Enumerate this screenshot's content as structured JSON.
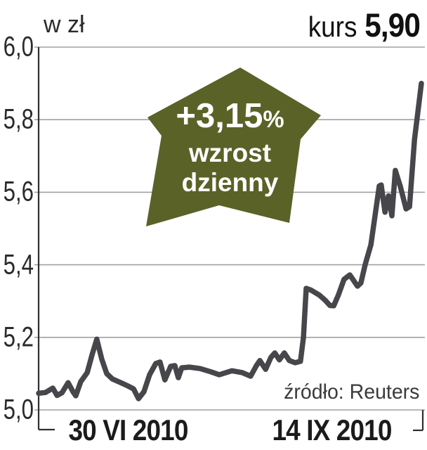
{
  "header": {
    "unit_label": "w zł",
    "price_label": "kurs",
    "price_value": "5,90"
  },
  "badge": {
    "change_value": "+3,15",
    "percent_sign": "%",
    "caption_line1": "wzrost",
    "caption_line2": "dzienny",
    "arrow_color": "#5a6227",
    "text_color": "#ffffff"
  },
  "source_note": "źródło: Reuters",
  "chart_data": {
    "type": "line",
    "title": "kurs (w zł)",
    "ylabel": "w zł",
    "ylim": [
      5.0,
      6.0
    ],
    "y_ticks": [
      "6,0",
      "5,8",
      "5,6",
      "5,4",
      "5,2",
      "5,0"
    ],
    "y_tick_values": [
      6.0,
      5.8,
      5.6,
      5.4,
      5.2,
      5.0
    ],
    "x_ticks": [
      "30 VI 2010",
      "14 IX 2010"
    ],
    "grid": true,
    "legend": "none",
    "line_color": "#46464b",
    "grid_color": "#a0a0a0",
    "axis_color": "#2f2f2f",
    "last_value": "5,90",
    "daily_change_percent": "+3,15%",
    "series": [
      {
        "name": "kurs",
        "points": [
          [
            0.0,
            5.046
          ],
          [
            0.018,
            5.048
          ],
          [
            0.037,
            5.06
          ],
          [
            0.048,
            5.04
          ],
          [
            0.061,
            5.047
          ],
          [
            0.077,
            5.075
          ],
          [
            0.09,
            5.05
          ],
          [
            0.097,
            5.039
          ],
          [
            0.11,
            5.078
          ],
          [
            0.127,
            5.103
          ],
          [
            0.139,
            5.15
          ],
          [
            0.152,
            5.195
          ],
          [
            0.165,
            5.14
          ],
          [
            0.178,
            5.1
          ],
          [
            0.193,
            5.085
          ],
          [
            0.215,
            5.075
          ],
          [
            0.233,
            5.066
          ],
          [
            0.248,
            5.058
          ],
          [
            0.261,
            5.031
          ],
          [
            0.275,
            5.05
          ],
          [
            0.29,
            5.097
          ],
          [
            0.306,
            5.128
          ],
          [
            0.317,
            5.132
          ],
          [
            0.33,
            5.083
          ],
          [
            0.345,
            5.12
          ],
          [
            0.356,
            5.122
          ],
          [
            0.365,
            5.089
          ],
          [
            0.374,
            5.116
          ],
          [
            0.394,
            5.118
          ],
          [
            0.422,
            5.114
          ],
          [
            0.45,
            5.105
          ],
          [
            0.472,
            5.097
          ],
          [
            0.505,
            5.108
          ],
          [
            0.532,
            5.103
          ],
          [
            0.554,
            5.093
          ],
          [
            0.569,
            5.122
          ],
          [
            0.578,
            5.136
          ],
          [
            0.593,
            5.112
          ],
          [
            0.607,
            5.145
          ],
          [
            0.617,
            5.157
          ],
          [
            0.629,
            5.138
          ],
          [
            0.642,
            5.157
          ],
          [
            0.655,
            5.136
          ],
          [
            0.67,
            5.13
          ],
          [
            0.684,
            5.134
          ],
          [
            0.692,
            5.2
          ],
          [
            0.699,
            5.335
          ],
          [
            0.712,
            5.33
          ],
          [
            0.734,
            5.316
          ],
          [
            0.749,
            5.302
          ],
          [
            0.761,
            5.288
          ],
          [
            0.771,
            5.287
          ],
          [
            0.783,
            5.316
          ],
          [
            0.798,
            5.36
          ],
          [
            0.813,
            5.372
          ],
          [
            0.824,
            5.355
          ],
          [
            0.833,
            5.341
          ],
          [
            0.842,
            5.35
          ],
          [
            0.853,
            5.4
          ],
          [
            0.868,
            5.455
          ],
          [
            0.881,
            5.55
          ],
          [
            0.89,
            5.617
          ],
          [
            0.895,
            5.62
          ],
          [
            0.905,
            5.545
          ],
          [
            0.914,
            5.59
          ],
          [
            0.923,
            5.535
          ],
          [
            0.932,
            5.66
          ],
          [
            0.945,
            5.616
          ],
          [
            0.96,
            5.554
          ],
          [
            0.969,
            5.56
          ],
          [
            0.982,
            5.745
          ],
          [
            1.0,
            5.9
          ]
        ]
      }
    ]
  }
}
